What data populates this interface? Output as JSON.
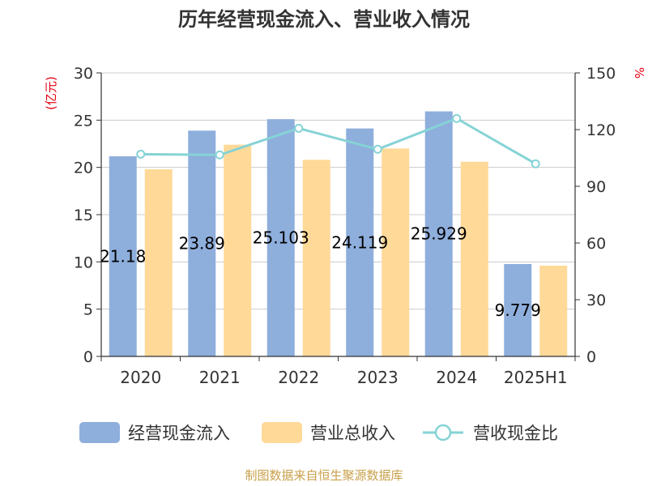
{
  "chart_data": {
    "type": "bar",
    "title": "历年经营现金流入、营业收入情况",
    "categories": [
      "2020",
      "2021",
      "2022",
      "2023",
      "2024",
      "2025H1"
    ],
    "series": [
      {
        "name": "经营现金流入",
        "type": "bar",
        "axis": "left",
        "color": "#8eaedc",
        "values": [
          21.18,
          23.89,
          25.103,
          24.119,
          25.929,
          9.779
        ],
        "labels": [
          "21.18",
          "23.89",
          "25.103",
          "24.119",
          "25.929",
          "9.779"
        ]
      },
      {
        "name": "营业总收入",
        "type": "bar",
        "axis": "left",
        "color": "#ffd998",
        "values": [
          19.8,
          22.4,
          20.8,
          22.0,
          20.6,
          9.6
        ]
      },
      {
        "name": "营收现金比",
        "type": "line",
        "axis": "right",
        "color": "#86d3d6",
        "values": [
          107,
          106.6,
          120.7,
          109.6,
          125.9,
          101.9
        ]
      }
    ],
    "y_left": {
      "label": "(亿元)",
      "min": 0,
      "max": 30,
      "ticks": [
        0,
        5,
        10,
        15,
        20,
        25,
        30
      ]
    },
    "y_right": {
      "label": "%",
      "min": 0,
      "max": 150,
      "ticks": [
        0,
        30,
        60,
        90,
        120,
        150
      ]
    },
    "grid": true,
    "legend": "bottom"
  },
  "source": "制图数据来自恒生聚源数据库"
}
